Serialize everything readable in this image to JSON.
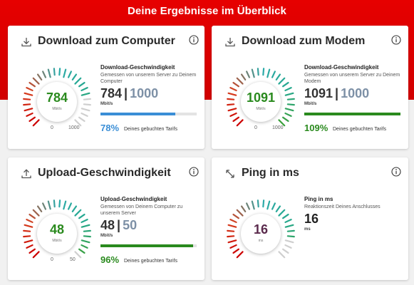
{
  "page_title": "Deine Ergebnisse im Überblick",
  "colors": {
    "brand_red": "#e60000",
    "green": "#2a8a1e",
    "blue": "#3a8ed6",
    "tariff_gray": "#7d90a6",
    "ping_purple": "#5a2a4c"
  },
  "cards": {
    "download_computer": {
      "title": "Download zum Computer",
      "icon": "download-icon",
      "gauge": {
        "value": "784",
        "unit": "Mbit/s",
        "min": "0",
        "max": "1000",
        "fraction": 0.784,
        "value_color": "#2a8a1e"
      },
      "result_title": "Download-Geschwindigkeit",
      "result_subtitle": "Gemessen von unserem Server zu Deinem Computer",
      "measured": "784",
      "separator": "|",
      "tariff": "1000",
      "unit": "Mbit/s",
      "percent": "78%",
      "percent_value": 0.78,
      "percent_color": "#3a8ed6",
      "percent_text": "Deines gebuchten Tarifs"
    },
    "download_modem": {
      "title": "Download zum Modem",
      "icon": "download-icon",
      "gauge": {
        "value": "1091",
        "unit": "Mbit/s",
        "min": "0",
        "max": "1000",
        "fraction": 1.0,
        "value_color": "#2a8a1e"
      },
      "result_title": "Download-Geschwindigkeit",
      "result_subtitle": "Gemessen von unserem Server zu Deinem Modem",
      "measured": "1091",
      "separator": "|",
      "tariff": "1000",
      "unit": "Mbit/s",
      "percent": "109%",
      "percent_value": 1.0,
      "percent_color": "#2a8a1e",
      "percent_text": "Deines gebuchten Tarifs"
    },
    "upload": {
      "title": "Upload-Geschwindigkeit",
      "icon": "upload-icon",
      "gauge": {
        "value": "48",
        "unit": "Mbit/s",
        "min": "0",
        "max": "50",
        "fraction": 0.96,
        "value_color": "#2a8a1e"
      },
      "result_title": "Upload-Geschwindigkeit",
      "result_subtitle": "Gemessen von Deinem Computer zu unserem Server",
      "measured": "48",
      "separator": "|",
      "tariff": "50",
      "unit": "Mbit/s",
      "percent": "96%",
      "percent_value": 0.96,
      "percent_color": "#2a8a1e",
      "percent_text": "Deines gebuchten Tarifs"
    },
    "ping": {
      "title": "Ping in ms",
      "icon": "ping-arrows-icon",
      "gauge": {
        "value": "16",
        "unit": "ms",
        "fraction": 0.85,
        "value_color": "#5a2a4c"
      },
      "result_title": "Ping in ms",
      "result_subtitle": "Reaktionszeit Deines Anschlusses",
      "measured": "16",
      "unit": "ms"
    }
  }
}
